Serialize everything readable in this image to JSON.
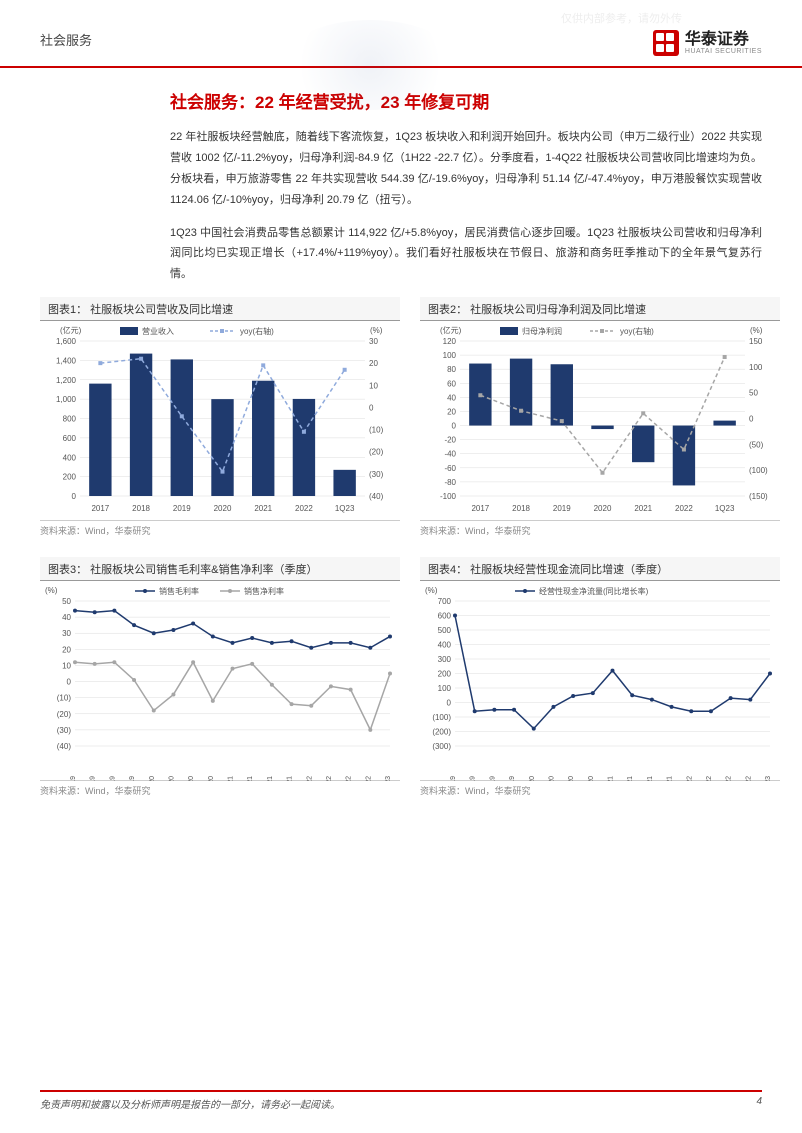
{
  "watermark": "仅供内部参考，请勿外传",
  "header": {
    "category": "社会服务",
    "brand": "华泰证券",
    "brand_en": "HUATAI SECURITIES"
  },
  "section_title": "社会服务：22 年经营受扰，23 年修复可期",
  "paragraphs": [
    "22 年社服板块经营触底，随着线下客流恢复，1Q23 板块收入和利润开始回升。板块内公司（申万二级行业）2022 共实现营收 1002 亿/-11.2%yoy，归母净利润-84.9 亿（1H22 -22.7 亿）。分季度看，1-4Q22 社服板块公司营收同比增速均为负。分板块看，申万旅游零售 22 年共实现营收 544.39 亿/-19.6%yoy，归母净利 51.14 亿/-47.4%yoy，申万港股餐饮实现营收 1124.06 亿/-10%yoy，归母净利 20.79 亿（扭亏）。",
    "1Q23 中国社会消费品零售总额累计 114,922 亿/+5.8%yoy，居民消费信心逐步回暖。1Q23 社服板块公司营收和归母净利润同比均已实现正增长（+17.4%/+119%yoy）。我们看好社服板块在节假日、旅游和商务旺季推动下的全年景气复苏行情。"
  ],
  "source_label": "资料来源：Wind，华泰研究",
  "footer": {
    "disclaimer": "免责声明和披露以及分析师声明是报告的一部分，请务必一起阅读。",
    "page": "4"
  },
  "chart1": {
    "title": "图表1：  社服板块公司营收及同比增速",
    "type": "bar+line",
    "left_axis_label": "(亿元)",
    "right_axis_label": "(%)",
    "legend_bar": "营业收入",
    "legend_line": "yoy(右轴)",
    "categories": [
      "2017",
      "2018",
      "2019",
      "2020",
      "2021",
      "2022",
      "1Q23"
    ],
    "bar_values": [
      1160,
      1470,
      1410,
      1000,
      1190,
      1002,
      270
    ],
    "line_values": [
      20,
      22,
      -4,
      -29,
      19,
      -11,
      17
    ],
    "bar_color": "#1f3a6e",
    "line_color": "#8faadc",
    "y_left": {
      "min": 0,
      "max": 1600,
      "step": 200
    },
    "y_right": {
      "min": -40,
      "max": 30,
      "step": 10
    },
    "background": "#ffffff",
    "grid_color": "#dcdcdc",
    "right_neg_paren": true
  },
  "chart2": {
    "title": "图表2：  社服板块公司归母净利润及同比增速",
    "type": "bar+line",
    "left_axis_label": "(亿元)",
    "right_axis_label": "(%)",
    "legend_bar": "归母净利润",
    "legend_line": "yoy(右轴)",
    "categories": [
      "2017",
      "2018",
      "2019",
      "2020",
      "2021",
      "2022",
      "1Q23"
    ],
    "bar_values": [
      88,
      95,
      87,
      -5,
      -52,
      -85,
      7
    ],
    "line_values": [
      45,
      15,
      -5,
      -105,
      10,
      -60,
      119
    ],
    "bar_color": "#1f3a6e",
    "line_color": "#a6a6a6",
    "y_left": {
      "min": -100,
      "max": 120,
      "step": 20
    },
    "y_right": {
      "min": -150,
      "max": 150,
      "step": 50
    },
    "background": "#ffffff",
    "grid_color": "#dcdcdc",
    "right_neg_paren": true
  },
  "chart3": {
    "title": "图表3：  社服板块公司销售毛利率&销售净利率（季度）",
    "type": "line",
    "y_label": "(%)",
    "legend1": "销售毛利率",
    "legend2": "销售净利率",
    "categories": [
      "1Q19",
      "2Q19",
      "3Q19",
      "4Q19",
      "1Q20",
      "2Q20",
      "3Q20",
      "4Q20",
      "1Q21",
      "2Q21",
      "3Q21",
      "4Q21",
      "1Q22",
      "2Q22",
      "3Q22",
      "4Q22",
      "1Q23"
    ],
    "series1_values": [
      44,
      43,
      44,
      35,
      30,
      32,
      36,
      28,
      24,
      27,
      24,
      25,
      21,
      24,
      24,
      21,
      28
    ],
    "series2_values": [
      12,
      11,
      12,
      1,
      -18,
      -8,
      12,
      -12,
      8,
      11,
      -2,
      -14,
      -15,
      -3,
      -5,
      -30,
      5
    ],
    "color1": "#1f3a6e",
    "color2": "#a6a6a6",
    "y": {
      "min": -40,
      "max": 50,
      "step": 10
    },
    "neg_paren": true,
    "background": "#ffffff",
    "grid_color": "#dcdcdc"
  },
  "chart4": {
    "title": "图表4：  社服板块经营性现金流同比增速（季度）",
    "type": "line",
    "y_label": "(%)",
    "legend": "经营性现金净流量(同比增长率)",
    "categories": [
      "1Q19",
      "2Q19",
      "3Q19",
      "4Q19",
      "1Q20",
      "2Q20",
      "3Q20",
      "4Q20",
      "1Q21",
      "2Q21",
      "3Q21",
      "4Q21",
      "1Q22",
      "2Q22",
      "3Q22",
      "4Q22",
      "1Q23"
    ],
    "values": [
      600,
      -60,
      -50,
      -50,
      -180,
      -30,
      45,
      65,
      220,
      50,
      20,
      -30,
      -60,
      -60,
      30,
      20,
      200
    ],
    "color": "#1f3a6e",
    "y": {
      "min": -300,
      "max": 700,
      "step": 100
    },
    "neg_paren": true,
    "background": "#ffffff",
    "grid_color": "#dcdcdc"
  }
}
